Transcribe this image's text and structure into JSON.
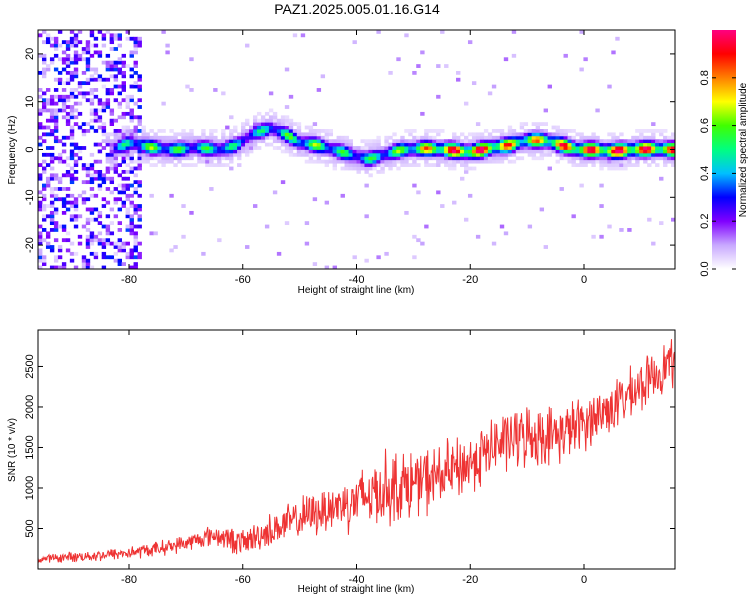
{
  "title": "PAZ1.2025.005.01.16.G14",
  "chart_data": [
    {
      "type": "heatmap",
      "xlabel": "Height of straight line (km)",
      "ylabel": "Frequency (Hz)",
      "xlim": [
        -96,
        16
      ],
      "ylim": [
        -25,
        25
      ],
      "xticks": [
        -80,
        -60,
        -40,
        -20,
        0
      ],
      "yticks": [
        -20,
        -10,
        0,
        10,
        20
      ],
      "colorbar": {
        "label": "Normalized spectral amplitude",
        "range": [
          0,
          1
        ],
        "ticks": [
          "0.0",
          "0.2",
          "0.4",
          "0.6",
          "0.8"
        ],
        "tick_values": [
          0,
          0.2,
          0.4,
          0.6,
          0.8
        ],
        "colormap": [
          "#ffffff",
          "#c8a8ff",
          "#8000ff",
          "#0000ff",
          "#00c0ff",
          "#00ff80",
          "#40ff00",
          "#ffff00",
          "#ff8000",
          "#ff0000",
          "#ff0080"
        ]
      },
      "ridge": {
        "x": [
          -83,
          -80,
          -76,
          -72,
          -68,
          -64,
          -61,
          -58,
          -55,
          -52,
          -50,
          -47,
          -44,
          -41,
          -38,
          -35,
          -32,
          -28,
          -24,
          -20,
          -16,
          -13,
          -10,
          -7,
          -4,
          -1,
          2,
          5,
          8,
          12,
          16
        ],
        "y": [
          0,
          1.5,
          0.5,
          0,
          0.5,
          0,
          1,
          3.5,
          4.5,
          3,
          1.5,
          1,
          0,
          -1,
          -2,
          -1,
          0,
          0.3,
          0,
          -0.5,
          0.5,
          1,
          2,
          2,
          1,
          0,
          0,
          -0.3,
          0,
          0.2,
          0
        ],
        "amplitude": [
          0.35,
          0.5,
          0.6,
          0.55,
          0.5,
          0.55,
          0.45,
          0.45,
          0.5,
          0.55,
          0.6,
          0.6,
          0.55,
          0.5,
          0.5,
          0.55,
          0.6,
          0.75,
          0.9,
          0.95,
          0.9,
          0.8,
          0.7,
          0.8,
          0.85,
          0.9,
          0.9,
          0.95,
          0.95,
          0.9,
          0.85
        ]
      },
      "noise_region_x": [
        -96,
        -78
      ]
    },
    {
      "type": "line",
      "xlabel": "Height of straight line (km)",
      "ylabel": "SNR (10 * v/v)",
      "xlim": [
        -96,
        16
      ],
      "ylim": [
        0,
        2950
      ],
      "xticks": [
        -80,
        -60,
        -40,
        -20,
        0
      ],
      "yticks": [
        500,
        1000,
        1500,
        2000,
        2500
      ],
      "series_color": "#ee3333",
      "trend": {
        "x": [
          -96,
          -90,
          -85,
          -80,
          -75,
          -70,
          -65,
          -60,
          -55,
          -50,
          -45,
          -40,
          -35,
          -30,
          -25,
          -20,
          -15,
          -10,
          -5,
          0,
          5,
          10,
          15
        ],
        "y": [
          120,
          150,
          170,
          200,
          250,
          320,
          420,
          320,
          480,
          620,
          750,
          850,
          1000,
          1050,
          1150,
          1300,
          1550,
          1650,
          1650,
          1800,
          2000,
          2250,
          2550
        ]
      },
      "spread": {
        "x": [
          -96,
          -70,
          -60,
          -45,
          -35,
          -30,
          -20,
          -10,
          0,
          15
        ],
        "y": [
          60,
          120,
          200,
          350,
          550,
          500,
          450,
          450,
          400,
          350
        ]
      }
    }
  ]
}
